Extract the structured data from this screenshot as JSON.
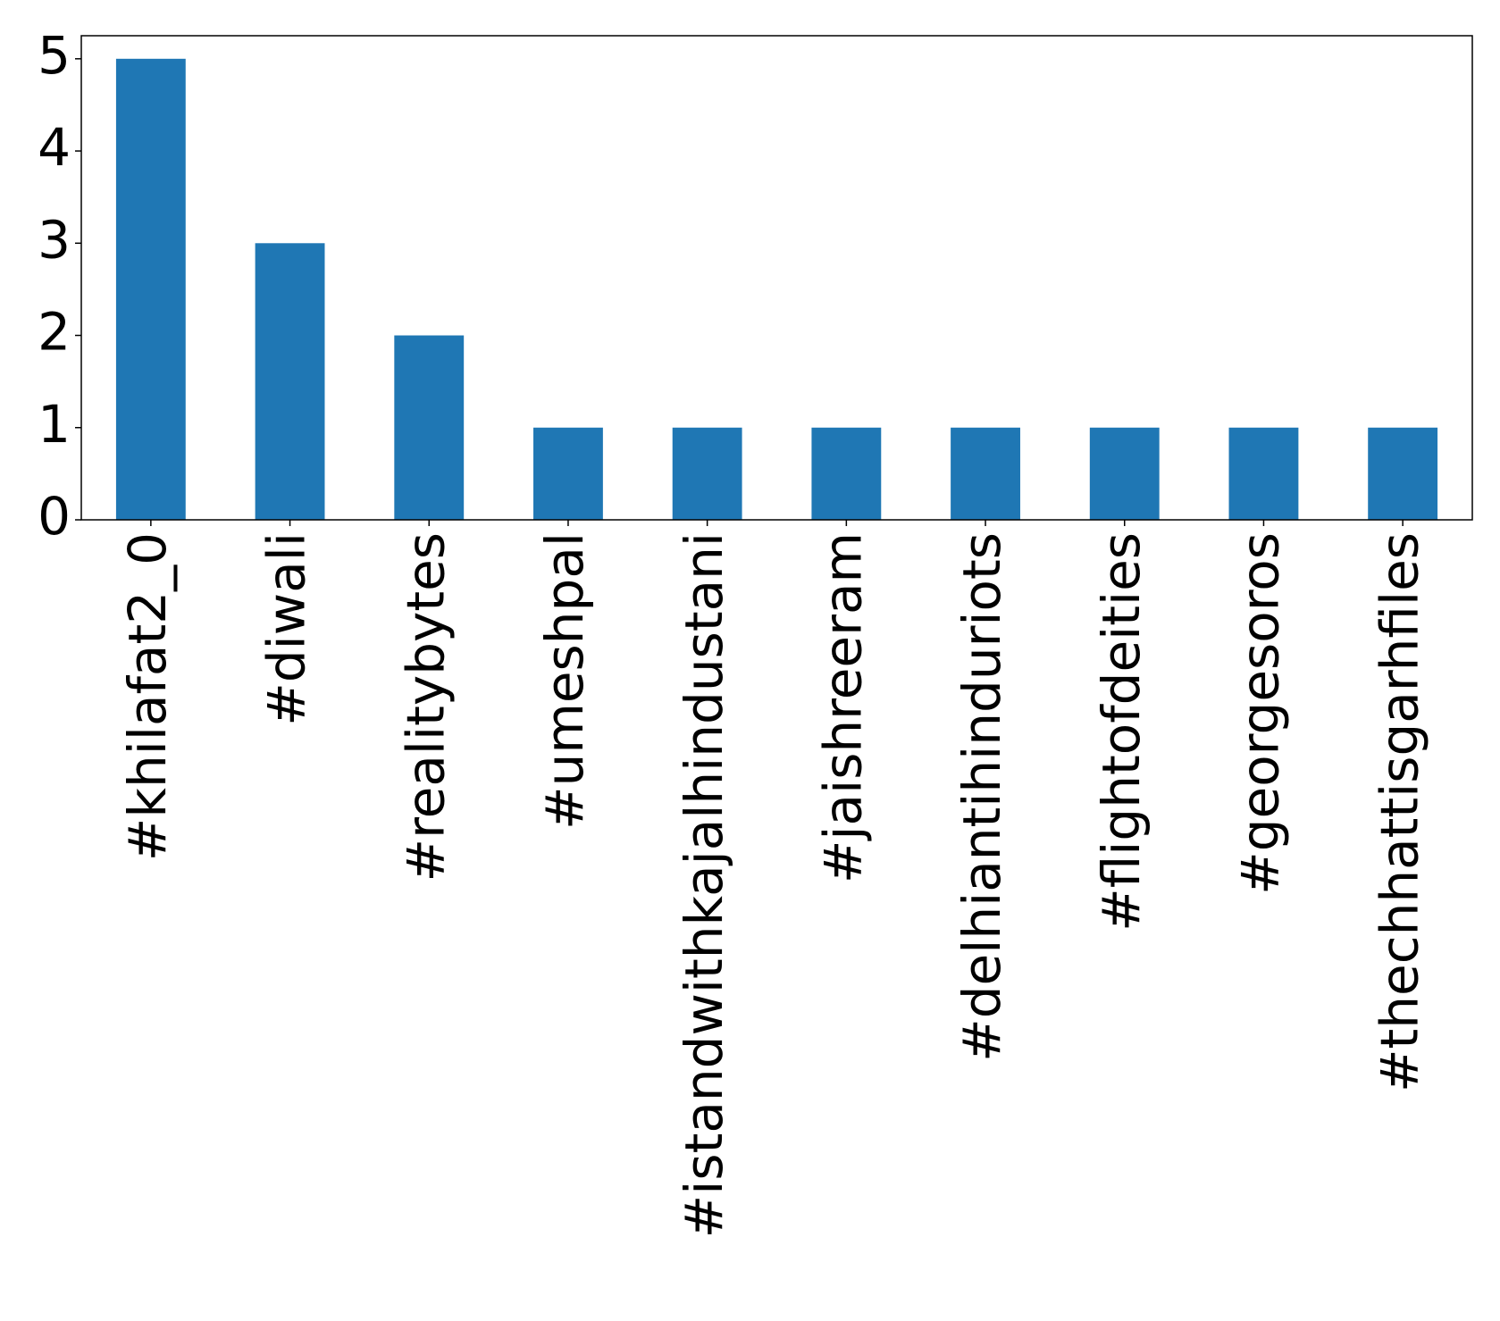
{
  "chart_data": {
    "type": "bar",
    "categories": [
      "#khilafat2_0",
      "#diwali",
      "#realitybytes",
      "#umeshpal",
      "#istandwithkajalhindustani",
      "#jaishreeram",
      "#delhiantihinduriots",
      "#flightofdeities",
      "#georgesoros",
      "#thechhattisgarhfiles"
    ],
    "values": [
      5,
      3,
      2,
      1,
      1,
      1,
      1,
      1,
      1,
      1
    ],
    "color": "#1f77b4",
    "ylim": [
      0,
      5.25
    ],
    "yticks": [
      0,
      1,
      2,
      3,
      4,
      5
    ],
    "grid": false
  }
}
